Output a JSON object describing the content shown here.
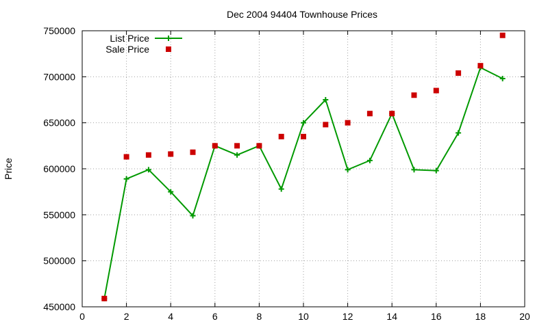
{
  "chart_data": {
    "type": "line",
    "title": "Dec 2004 94404 Townhouse Prices",
    "xlabel": "",
    "ylabel": "Price",
    "xlim": [
      0,
      20
    ],
    "ylim": [
      450000,
      750000
    ],
    "xticks": [
      0,
      2,
      4,
      6,
      8,
      10,
      12,
      14,
      16,
      18,
      20
    ],
    "yticks": [
      450000,
      500000,
      550000,
      600000,
      650000,
      700000,
      750000
    ],
    "xtick_labels": [
      "0",
      "2",
      "4",
      "6",
      "8",
      "10",
      "12",
      "14",
      "16",
      "18",
      "20"
    ],
    "ytick_labels": [
      "450000",
      "500000",
      "550000",
      "600000",
      "650000",
      "700000",
      "750000"
    ],
    "grid": true,
    "legend_position": "top-left",
    "series": [
      {
        "name": "List Price",
        "style": "linespoints",
        "marker": "plus",
        "color": "#009900",
        "x": [
          1,
          2,
          3,
          4,
          5,
          6,
          7,
          8,
          9,
          10,
          11,
          12,
          13,
          14,
          15,
          16,
          17,
          18,
          19
        ],
        "y": [
          459000,
          589000,
          599000,
          575000,
          549000,
          625000,
          615000,
          625000,
          578000,
          650000,
          675000,
          599000,
          609000,
          660000,
          599000,
          598000,
          639000,
          710000,
          698000
        ]
      },
      {
        "name": "Sale Price",
        "style": "points",
        "marker": "square",
        "color": "#cc0000",
        "x": [
          1,
          2,
          3,
          4,
          5,
          6,
          7,
          8,
          9,
          10,
          11,
          12,
          13,
          14,
          15,
          16,
          17,
          18,
          19
        ],
        "y": [
          459000,
          613000,
          615000,
          616000,
          618000,
          625000,
          625000,
          625000,
          635000,
          635000,
          648000,
          650000,
          660000,
          660000,
          680000,
          685000,
          704000,
          712000,
          745000
        ]
      }
    ]
  }
}
